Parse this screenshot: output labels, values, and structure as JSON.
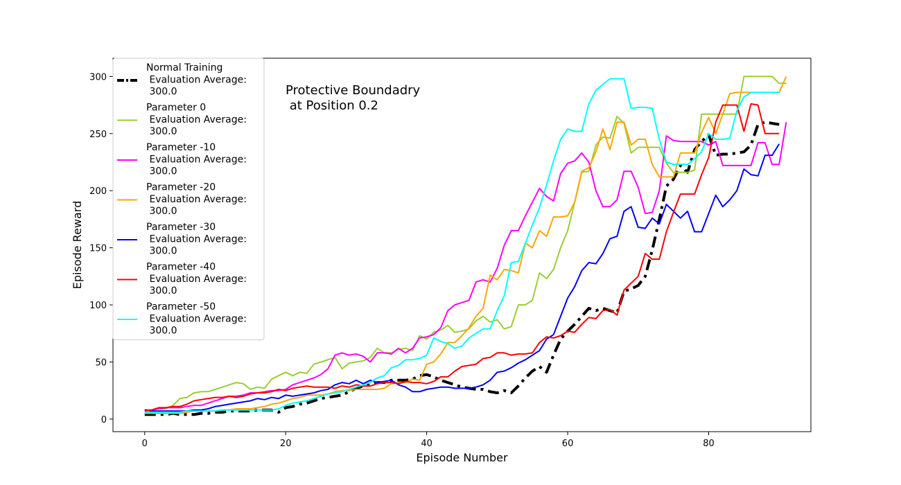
{
  "chart_data": {
    "type": "line",
    "title": "",
    "xlabel": "Episode Number",
    "ylabel": "Episode Reward",
    "xlim": [
      -4.5,
      94.5
    ],
    "ylim": [
      -11,
      316
    ],
    "xticks": [
      0,
      20,
      40,
      60,
      80
    ],
    "yticks": [
      0,
      50,
      100,
      150,
      200,
      250,
      300
    ],
    "grid": false,
    "legend_position": "upper-left",
    "annotation": {
      "lines": [
        "Protective Boundadry",
        " at Position 0.2"
      ],
      "x": 20,
      "y": 290
    },
    "series": [
      {
        "name": "Normal Training\n Evaluation Average:\n 300.0",
        "color": "#000000",
        "style": "dashdot",
        "width": 4,
        "x_start": 0,
        "values": [
          4,
          4,
          4,
          4,
          5,
          4,
          4,
          4,
          5,
          5,
          6,
          6,
          7,
          7,
          7,
          7,
          8,
          8,
          8,
          6,
          10,
          11,
          13,
          14,
          16,
          18,
          19,
          20,
          21,
          24,
          27,
          29,
          30,
          32,
          32,
          34,
          34,
          34,
          35,
          38,
          39,
          37,
          34,
          32,
          30,
          28,
          27,
          26,
          26,
          24,
          23,
          25,
          23,
          29,
          36,
          42,
          46,
          41,
          56,
          70,
          77,
          83,
          90,
          97,
          95,
          97,
          95,
          93,
          112,
          114,
          117,
          125,
          148,
          175,
          204,
          210,
          222,
          216,
          236,
          243,
          249,
          231,
          232,
          232,
          233,
          234,
          240,
          258,
          260,
          259,
          258
        ]
      },
      {
        "name": "Parameter 0\n Evaluation Average:\n 300.0",
        "color": "#9acd32",
        "style": "solid",
        "width": 2,
        "x_start": 0,
        "values": [
          8,
          8,
          9,
          9,
          12,
          18,
          19,
          23,
          24,
          24,
          26,
          28,
          30,
          32,
          31,
          26,
          28,
          27,
          35,
          38,
          41,
          38,
          41,
          40,
          48,
          50,
          52,
          54,
          44,
          49,
          50,
          51,
          54,
          62,
          58,
          58,
          61,
          62,
          60,
          73,
          70,
          76,
          78,
          82,
          76,
          77,
          79,
          86,
          90,
          85,
          87,
          79,
          81,
          100,
          100,
          104,
          128,
          123,
          131,
          150,
          165,
          190,
          216,
          217,
          240,
          247,
          246,
          265,
          259,
          233,
          238,
          238,
          238,
          238,
          224,
          216,
          216,
          216,
          218,
          267,
          267,
          267,
          267,
          267,
          267,
          300,
          300,
          300,
          300,
          300,
          294,
          294
        ]
      },
      {
        "name": "Parameter -10\n Evaluation Average:\n 300.0",
        "color": "#ff00ff",
        "style": "solid",
        "width": 2,
        "x_start": 0,
        "values": [
          8,
          8,
          9,
          10,
          10,
          10,
          11,
          12,
          12,
          14,
          16,
          18,
          20,
          20,
          21,
          23,
          23,
          24,
          25,
          25,
          26,
          30,
          32,
          34,
          36,
          39,
          44,
          56,
          58,
          56,
          57,
          55,
          50,
          58,
          58,
          57,
          62,
          58,
          62,
          71,
          72,
          74,
          80,
          95,
          100,
          102,
          104,
          120,
          122,
          120,
          132,
          152,
          165,
          165,
          178,
          190,
          202,
          195,
          191,
          215,
          224,
          226,
          233,
          225,
          200,
          186,
          186,
          192,
          217,
          217,
          203,
          180,
          181,
          200,
          248,
          244,
          243,
          243,
          243,
          243,
          240,
          243,
          222,
          222,
          222,
          222,
          222,
          242,
          242,
          223,
          223,
          260
        ]
      },
      {
        "name": "Parameter -20\n Evaluation Average:\n 300.0",
        "color": "#ffa500",
        "style": "solid",
        "width": 2,
        "x_start": 0,
        "values": [
          5,
          5,
          5,
          5,
          5,
          5,
          6,
          7,
          7,
          7,
          7,
          8,
          8,
          9,
          9,
          9,
          10,
          11,
          13,
          14,
          16,
          18,
          19,
          21,
          21,
          21,
          22,
          24,
          25,
          25,
          26,
          26,
          26,
          26,
          27,
          31,
          32,
          32,
          35,
          34,
          48,
          50,
          57,
          67,
          67,
          73,
          80,
          90,
          97,
          126,
          122,
          131,
          130,
          128,
          154,
          150,
          165,
          160,
          177,
          177,
          178,
          190,
          217,
          220,
          234,
          254,
          236,
          260,
          260,
          240,
          245,
          245,
          223,
          212,
          212,
          212,
          233,
          233,
          233,
          251,
          264,
          250,
          267,
          285,
          286,
          286,
          286,
          286,
          286,
          286,
          286,
          300
        ]
      },
      {
        "name": "Parameter -30\n Evaluation Average:\n 300.0",
        "color": "#0000ff",
        "style": "solid",
        "width": 2,
        "x_start": 0,
        "values": [
          8,
          7,
          7,
          7,
          7,
          7,
          7,
          8,
          8,
          9,
          11,
          12,
          13,
          14,
          15,
          16,
          18,
          17,
          19,
          18,
          21,
          20,
          21,
          22,
          23,
          25,
          26,
          30,
          32,
          31,
          34,
          31,
          34,
          32,
          33,
          34,
          30,
          28,
          24,
          24,
          26,
          27,
          28,
          28,
          27,
          27,
          27,
          28,
          30,
          34,
          41,
          42,
          45,
          49,
          52,
          56,
          60,
          70,
          74,
          90,
          106,
          116,
          130,
          137,
          136,
          145,
          158,
          160,
          182,
          186,
          168,
          167,
          176,
          171,
          188,
          182,
          176,
          182,
          164,
          164,
          180,
          196,
          186,
          192,
          200,
          219,
          214,
          213,
          231,
          231,
          241
        ]
      },
      {
        "name": "Parameter -40\n Evaluation Average:\n 300.0",
        "color": "#ff0000",
        "style": "solid",
        "width": 2,
        "x_start": 0,
        "values": [
          7,
          8,
          10,
          10,
          11,
          11,
          13,
          16,
          17,
          18,
          19,
          19,
          20,
          19,
          20,
          22,
          23,
          23,
          24,
          26,
          25,
          27,
          28,
          29,
          28,
          28,
          28,
          27,
          29,
          28,
          30,
          29,
          29,
          31,
          32,
          32,
          31,
          33,
          32,
          32,
          31,
          33,
          37,
          37,
          42,
          46,
          47,
          48,
          53,
          54,
          58,
          58,
          56,
          57,
          57,
          58,
          67,
          72,
          71,
          73,
          77,
          76,
          83,
          89,
          88,
          95,
          96,
          91,
          113,
          119,
          125,
          145,
          140,
          140,
          164,
          181,
          197,
          197,
          197,
          214,
          229,
          260,
          275,
          275,
          275,
          252,
          276,
          275,
          250,
          250,
          250
        ]
      },
      {
        "name": "Parameter -50\n Evaluation Average:\n 300.0",
        "color": "#00ffff",
        "style": "solid",
        "width": 2,
        "x_start": 0,
        "values": [
          6,
          6,
          6,
          6,
          6,
          6,
          7,
          7,
          7,
          7,
          7,
          8,
          8,
          8,
          8,
          8,
          8,
          8,
          8,
          9,
          12,
          14,
          15,
          16,
          18,
          20,
          22,
          23,
          24,
          26,
          28,
          30,
          32,
          36,
          38,
          45,
          47,
          52,
          52,
          53,
          56,
          71,
          68,
          66,
          62,
          64,
          71,
          75,
          79,
          79,
          95,
          108,
          137,
          138,
          154,
          170,
          185,
          205,
          226,
          245,
          254,
          252,
          252,
          276,
          288,
          293,
          298,
          298,
          298,
          272,
          273,
          273,
          272,
          245,
          225,
          223,
          223,
          223,
          228,
          234,
          250,
          245,
          245,
          246,
          270,
          282,
          286,
          286,
          286,
          286,
          286
        ]
      }
    ]
  }
}
